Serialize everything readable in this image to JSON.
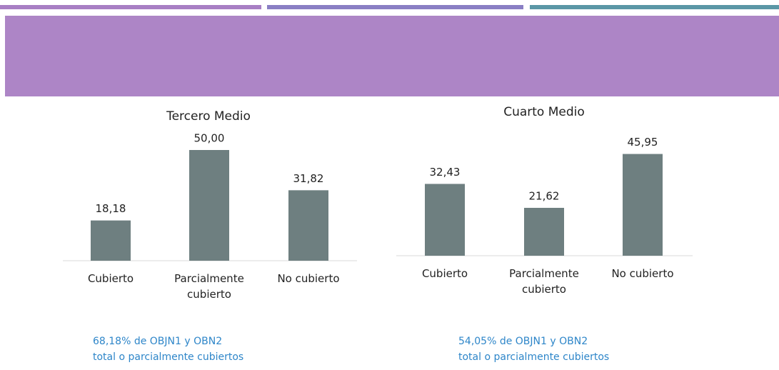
{
  "chart_data": [
    {
      "type": "bar",
      "title": "Tercero Medio",
      "categories": [
        "Cubierto",
        "Parcialmente cubierto",
        "No cubierto"
      ],
      "values": [
        18.18,
        50.0,
        31.82
      ],
      "value_labels": [
        "18,18",
        "50,00",
        "31,82"
      ],
      "color": "#6e7f80",
      "note": [
        "68,18% de OBJN1 y OBN2",
        "total o parcialmente cubiertos"
      ]
    },
    {
      "type": "bar",
      "title": "Cuarto Medio",
      "categories": [
        "Cubierto",
        "Parcialmente cubierto",
        "No cubierto"
      ],
      "values": [
        32.43,
        21.62,
        45.95
      ],
      "value_labels": [
        "32,43",
        "21,62",
        "45,95"
      ],
      "color": "#6e7f80",
      "note": [
        "54,05% de OBJN1 y OBN2",
        "total o parcialmente cubiertos"
      ]
    }
  ]
}
